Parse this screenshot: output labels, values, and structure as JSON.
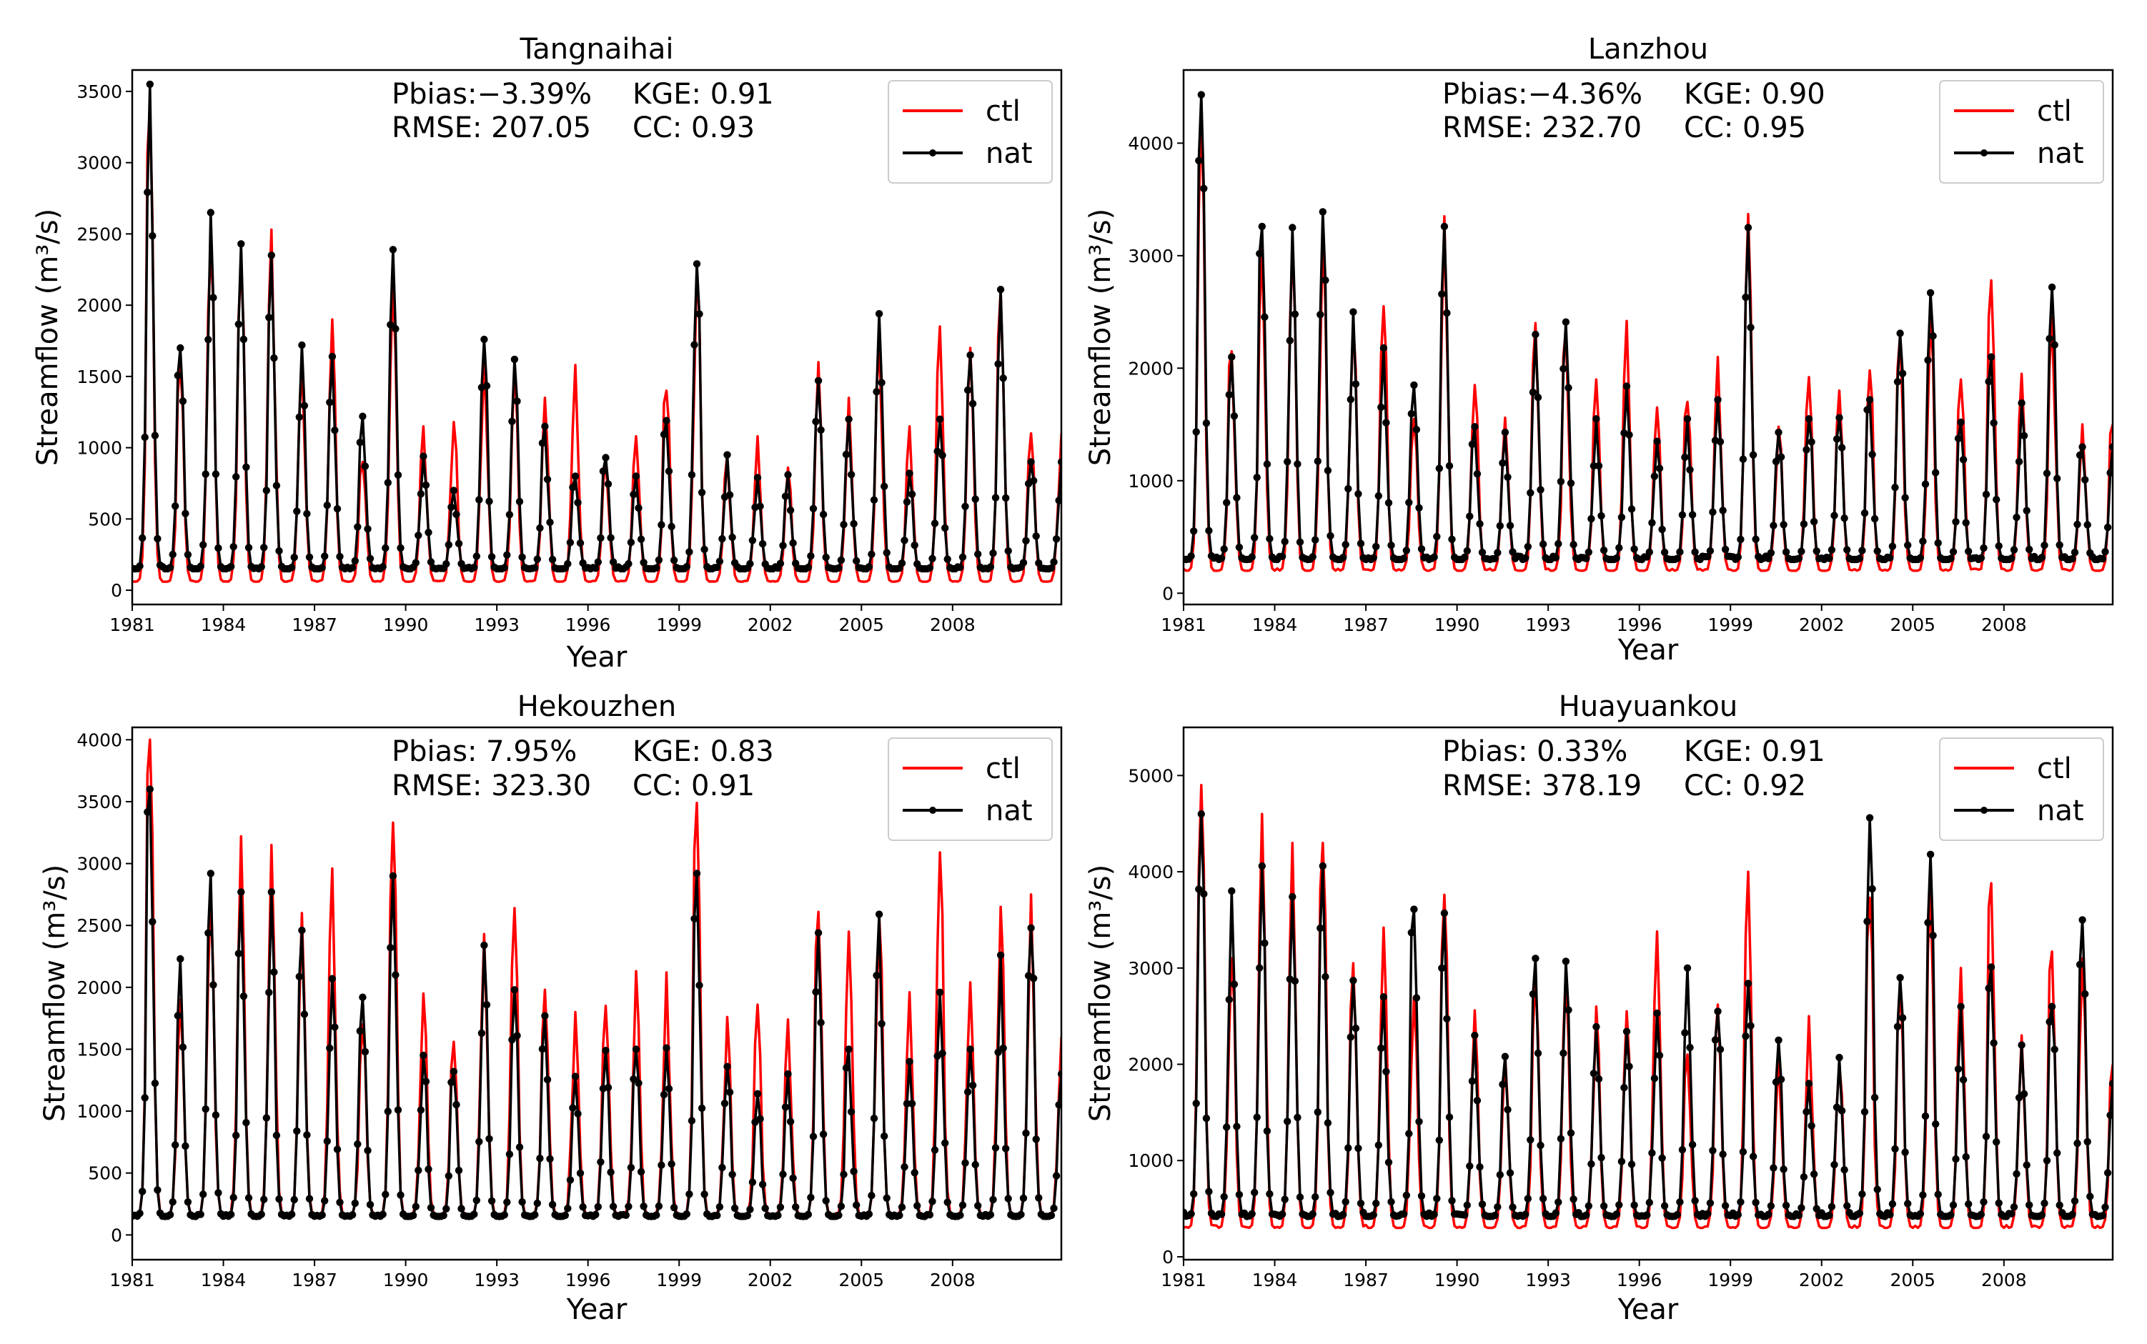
{
  "chart_data": [
    {
      "type": "line",
      "title": "Tangnaihai",
      "xlabel": "Year",
      "ylabel": "Streamflow (m³/s)",
      "ylim": [
        -100,
        3650
      ],
      "yticks": [
        0,
        500,
        1000,
        1500,
        2000,
        2500,
        3000,
        3500
      ],
      "xlim": [
        1981,
        2011.58
      ],
      "xticks": [
        "1981",
        "1984",
        "1987",
        "1990",
        "1993",
        "1996",
        "1999",
        "2002",
        "2005",
        "2008"
      ],
      "stats": {
        "pbias_text": "Pbias:−3.39%",
        "kge_text": "KGE: 0.91",
        "rmse_text": "RMSE: 207.05",
        "cc_text": "CC: 0.93"
      },
      "legend": {
        "position": "upper-right",
        "entries": [
          "ctl",
          "nat"
        ]
      },
      "annual_peaks": {
        "years": [
          1981,
          1982,
          1983,
          1984,
          1985,
          1986,
          1987,
          1988,
          1989,
          1990,
          1991,
          1992,
          1993,
          1994,
          1995,
          1996,
          1997,
          1998,
          1999,
          2000,
          2001,
          2002,
          2003,
          2004,
          2005,
          2006,
          2007,
          2008,
          2009,
          2010,
          2011
        ],
        "nat": [
          3550,
          1700,
          2650,
          2430,
          2350,
          1720,
          1640,
          1220,
          2390,
          940,
          700,
          1760,
          1620,
          1150,
          800,
          930,
          800,
          1190,
          2290,
          950,
          790,
          810,
          1470,
          1200,
          1940,
          820,
          1200,
          1650,
          2110,
          900,
          900
        ],
        "ctl": [
          3400,
          1600,
          2400,
          2300,
          2530,
          1600,
          1900,
          900,
          2200,
          1150,
          1180,
          1650,
          1580,
          1350,
          1580,
          930,
          1080,
          1400,
          2270,
          950,
          1080,
          860,
          1600,
          1350,
          1750,
          1150,
          1850,
          1700,
          2100,
          1100,
          1100
        ]
      },
      "series": [
        {
          "name": "ctl",
          "color": "#ff0000",
          "base": 60,
          "low_ratio": 0.55
        },
        {
          "name": "nat",
          "color": "#000000",
          "base": 150,
          "low_ratio": 1.0
        }
      ]
    },
    {
      "type": "line",
      "title": "Lanzhou",
      "xlabel": "Year",
      "ylabel": "Streamflow (m³/s)",
      "ylim": [
        -100,
        4650
      ],
      "yticks": [
        0,
        1000,
        2000,
        3000,
        4000
      ],
      "xlim": [
        1981,
        2011.58
      ],
      "xticks": [
        "1981",
        "1984",
        "1987",
        "1990",
        "1993",
        "1996",
        "1999",
        "2002",
        "2005",
        "2008"
      ],
      "stats": {
        "pbias_text": "Pbias:−4.36%",
        "kge_text": "KGE: 0.90",
        "rmse_text": "RMSE: 232.70",
        "cc_text": "CC: 0.95"
      },
      "legend": {
        "position": "upper-right",
        "entries": [
          "ctl",
          "nat"
        ]
      },
      "annual_peaks": {
        "years": [
          1981,
          1982,
          1983,
          1984,
          1985,
          1986,
          1987,
          1988,
          1989,
          1990,
          1991,
          1992,
          1993,
          1994,
          1995,
          1996,
          1997,
          1998,
          1999,
          2000,
          2001,
          2002,
          2003,
          2004,
          2005,
          2006,
          2007,
          2008,
          2009,
          2010,
          2011
        ],
        "nat": [
          4430,
          2100,
          3260,
          3250,
          3390,
          2500,
          2180,
          1850,
          3260,
          1480,
          1430,
          2300,
          2410,
          1550,
          1840,
          1350,
          1550,
          1720,
          3250,
          1430,
          1550,
          1560,
          1720,
          2310,
          2670,
          1520,
          2100,
          1690,
          2720,
          1300,
          1300
        ],
        "ctl": [
          4300,
          2150,
          3100,
          3100,
          3200,
          2400,
          2550,
          1550,
          3350,
          1850,
          1560,
          2400,
          2350,
          1900,
          2420,
          1650,
          1700,
          2100,
          3370,
          1480,
          1920,
          1800,
          1980,
          2300,
          2450,
          1900,
          2780,
          1950,
          2450,
          1500,
          1500
        ]
      },
      "series": [
        {
          "name": "ctl",
          "color": "#ff0000",
          "base": 200,
          "low_ratio": 0.6
        },
        {
          "name": "nat",
          "color": "#000000",
          "base": 300,
          "low_ratio": 1.0
        }
      ]
    },
    {
      "type": "line",
      "title": "Hekouzhen",
      "xlabel": "Year",
      "ylabel": "Streamflow (m³/s)",
      "ylim": [
        -200,
        4100
      ],
      "yticks": [
        0,
        500,
        1000,
        1500,
        2000,
        2500,
        3000,
        3500,
        4000
      ],
      "xlim": [
        1981,
        2011.58
      ],
      "xticks": [
        "1981",
        "1984",
        "1987",
        "1990",
        "1993",
        "1996",
        "1999",
        "2002",
        "2005",
        "2008"
      ],
      "stats": {
        "pbias_text": "Pbias: 7.95%",
        "kge_text": "KGE: 0.83",
        "rmse_text": "RMSE: 323.30",
        "cc_text": "CC: 0.91"
      },
      "legend": {
        "position": "upper-right",
        "entries": [
          "ctl",
          "nat"
        ]
      },
      "annual_peaks": {
        "years": [
          1981,
          1982,
          1983,
          1984,
          1985,
          1986,
          1987,
          1988,
          1989,
          1990,
          1991,
          1992,
          1993,
          1994,
          1995,
          1996,
          1997,
          1998,
          1999,
          2000,
          2001,
          2002,
          2003,
          2004,
          2005,
          2006,
          2007,
          2008,
          2009,
          2010,
          2011
        ],
        "nat": [
          3600,
          2230,
          2920,
          2770,
          2770,
          2460,
          2070,
          1920,
          2900,
          1450,
          1320,
          2340,
          1980,
          1770,
          1280,
          1490,
          1500,
          1510,
          2920,
          1360,
          1140,
          1300,
          2440,
          1500,
          2590,
          1400,
          1960,
          1500,
          2260,
          2480,
          1300
        ],
        "ctl": [
          4000,
          1900,
          2800,
          3220,
          3150,
          2600,
          2960,
          1700,
          3330,
          1950,
          1560,
          2430,
          2640,
          1980,
          1800,
          1850,
          2130,
          2120,
          3490,
          1760,
          1860,
          1740,
          2610,
          2450,
          2580,
          1960,
          3090,
          2040,
          2650,
          2750,
          1600
        ]
      },
      "series": [
        {
          "name": "ctl",
          "color": "#ff0000",
          "base": 160,
          "low_ratio": 0.9
        },
        {
          "name": "nat",
          "color": "#000000",
          "base": 150,
          "low_ratio": 1.0
        }
      ]
    },
    {
      "type": "line",
      "title": "Huayuankou",
      "xlabel": "Year",
      "ylabel": "Streamflow (m³/s)",
      "ylim": [
        -30,
        5500
      ],
      "yticks": [
        0,
        1000,
        2000,
        3000,
        4000,
        5000
      ],
      "xlim": [
        1981,
        2011.58
      ],
      "xticks": [
        "1981",
        "1984",
        "1987",
        "1990",
        "1993",
        "1996",
        "1999",
        "2002",
        "2005",
        "2008"
      ],
      "stats": {
        "pbias_text": "Pbias: 0.33%",
        "kge_text": "KGE: 0.91",
        "rmse_text": "RMSE: 378.19",
        "cc_text": "CC: 0.92"
      },
      "legend": {
        "position": "upper-right",
        "entries": [
          "ctl",
          "nat"
        ]
      },
      "annual_peaks": {
        "years": [
          1981,
          1982,
          1983,
          1984,
          1985,
          1986,
          1987,
          1988,
          1989,
          1990,
          1991,
          1992,
          1993,
          1994,
          1995,
          1996,
          1997,
          1998,
          1999,
          2000,
          2001,
          2002,
          2003,
          2004,
          2005,
          2006,
          2007,
          2008,
          2009,
          2010,
          2011
        ],
        "nat": [
          4600,
          3800,
          4060,
          3740,
          4060,
          2870,
          2700,
          3610,
          3570,
          2300,
          2080,
          3100,
          3070,
          2390,
          2340,
          2530,
          3000,
          2550,
          2840,
          2250,
          1800,
          2070,
          4560,
          2900,
          4180,
          2600,
          3010,
          2200,
          2600,
          3500,
          1800
        ],
        "ctl": [
          4900,
          3100,
          4600,
          4300,
          4300,
          3050,
          3420,
          2700,
          3760,
          2560,
          2100,
          2900,
          2980,
          2600,
          2550,
          3380,
          2100,
          2620,
          4000,
          2090,
          2500,
          2000,
          3730,
          2800,
          3800,
          3000,
          3880,
          2300,
          3170,
          3100,
          2000
        ]
      },
      "series": [
        {
          "name": "ctl",
          "color": "#ff0000",
          "base": 300,
          "low_ratio": 0.85
        },
        {
          "name": "nat",
          "color": "#000000",
          "base": 420,
          "low_ratio": 1.0
        }
      ]
    }
  ]
}
